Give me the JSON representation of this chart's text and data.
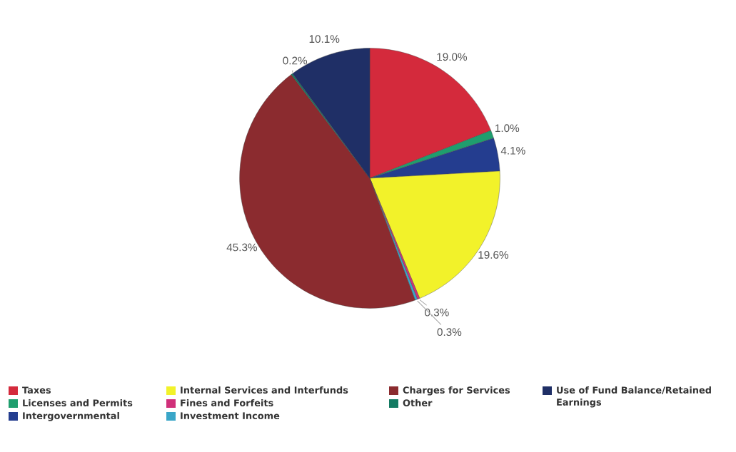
{
  "chart_data": {
    "type": "pie",
    "categories": [
      "Taxes",
      "Licenses and Permits",
      "Intergovernmental",
      "Internal Services and Interfunds",
      "Fines and Forfeits",
      "Investment Income",
      "Charges for Services",
      "Other",
      "Use of Fund Balance/Retained Earnings"
    ],
    "values": [
      19.0,
      1.0,
      4.1,
      19.6,
      0.3,
      0.3,
      45.3,
      0.2,
      10.1
    ],
    "colors": [
      "#d42a3c",
      "#1f9e6e",
      "#243d8f",
      "#f2f22a",
      "#d0307a",
      "#3aa6c8",
      "#8b2b2f",
      "#137a62",
      "#1f2f66"
    ],
    "value_labels": [
      "19.0%",
      "1.0%",
      "4.1%",
      "19.6%",
      "0.3%",
      "0.3%",
      "45.3%",
      "0.2%",
      "10.1%"
    ],
    "legend": "bottom"
  }
}
